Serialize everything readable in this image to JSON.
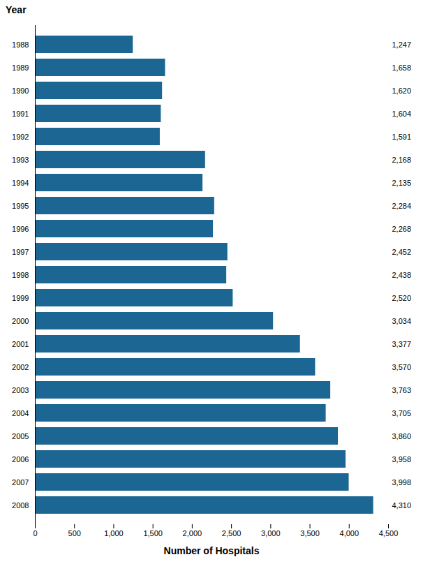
{
  "chart_data": {
    "type": "bar",
    "orientation": "horizontal",
    "categories": [
      "1988",
      "1989",
      "1990",
      "1991",
      "1992",
      "1993",
      "1994",
      "1995",
      "1996",
      "1997",
      "1998",
      "1999",
      "2000",
      "2001",
      "2002",
      "2003",
      "2004",
      "2005",
      "2006",
      "2007",
      "2008"
    ],
    "values": [
      1247,
      1658,
      1620,
      1604,
      1591,
      2168,
      2135,
      2284,
      2268,
      2452,
      2438,
      2520,
      3034,
      3377,
      3570,
      3763,
      3705,
      3860,
      3958,
      3998,
      4310
    ],
    "value_labels": [
      "1,247",
      "1,658",
      "1,620",
      "1,604",
      "1,591",
      "2,168",
      "2,135",
      "2,284",
      "2,268",
      "2,452",
      "2,438",
      "2,520",
      "3,034",
      "3,377",
      "3,570",
      "3,763",
      "3,705",
      "3,860",
      "3,958",
      "3,998",
      "4,310"
    ],
    "data_labels": true,
    "color": "#1b6692",
    "xlabel": "Number of Hospitals",
    "ylabel": "Year",
    "xlim": [
      0,
      4500
    ],
    "xticks": [
      0,
      500,
      {
        "value": 1000,
        "label": "1,000"
      },
      {
        "value": 1500,
        "label": "1,500"
      },
      {
        "value": 2000,
        "label": "2,000"
      },
      {
        "value": 2500,
        "label": "2,500"
      },
      {
        "value": 3000,
        "label": "3,000"
      },
      {
        "value": 3500,
        "label": "3,500"
      },
      {
        "value": 4000,
        "label": "4,000"
      },
      {
        "value": 4500,
        "label": "4,500"
      }
    ],
    "grid": false
  }
}
